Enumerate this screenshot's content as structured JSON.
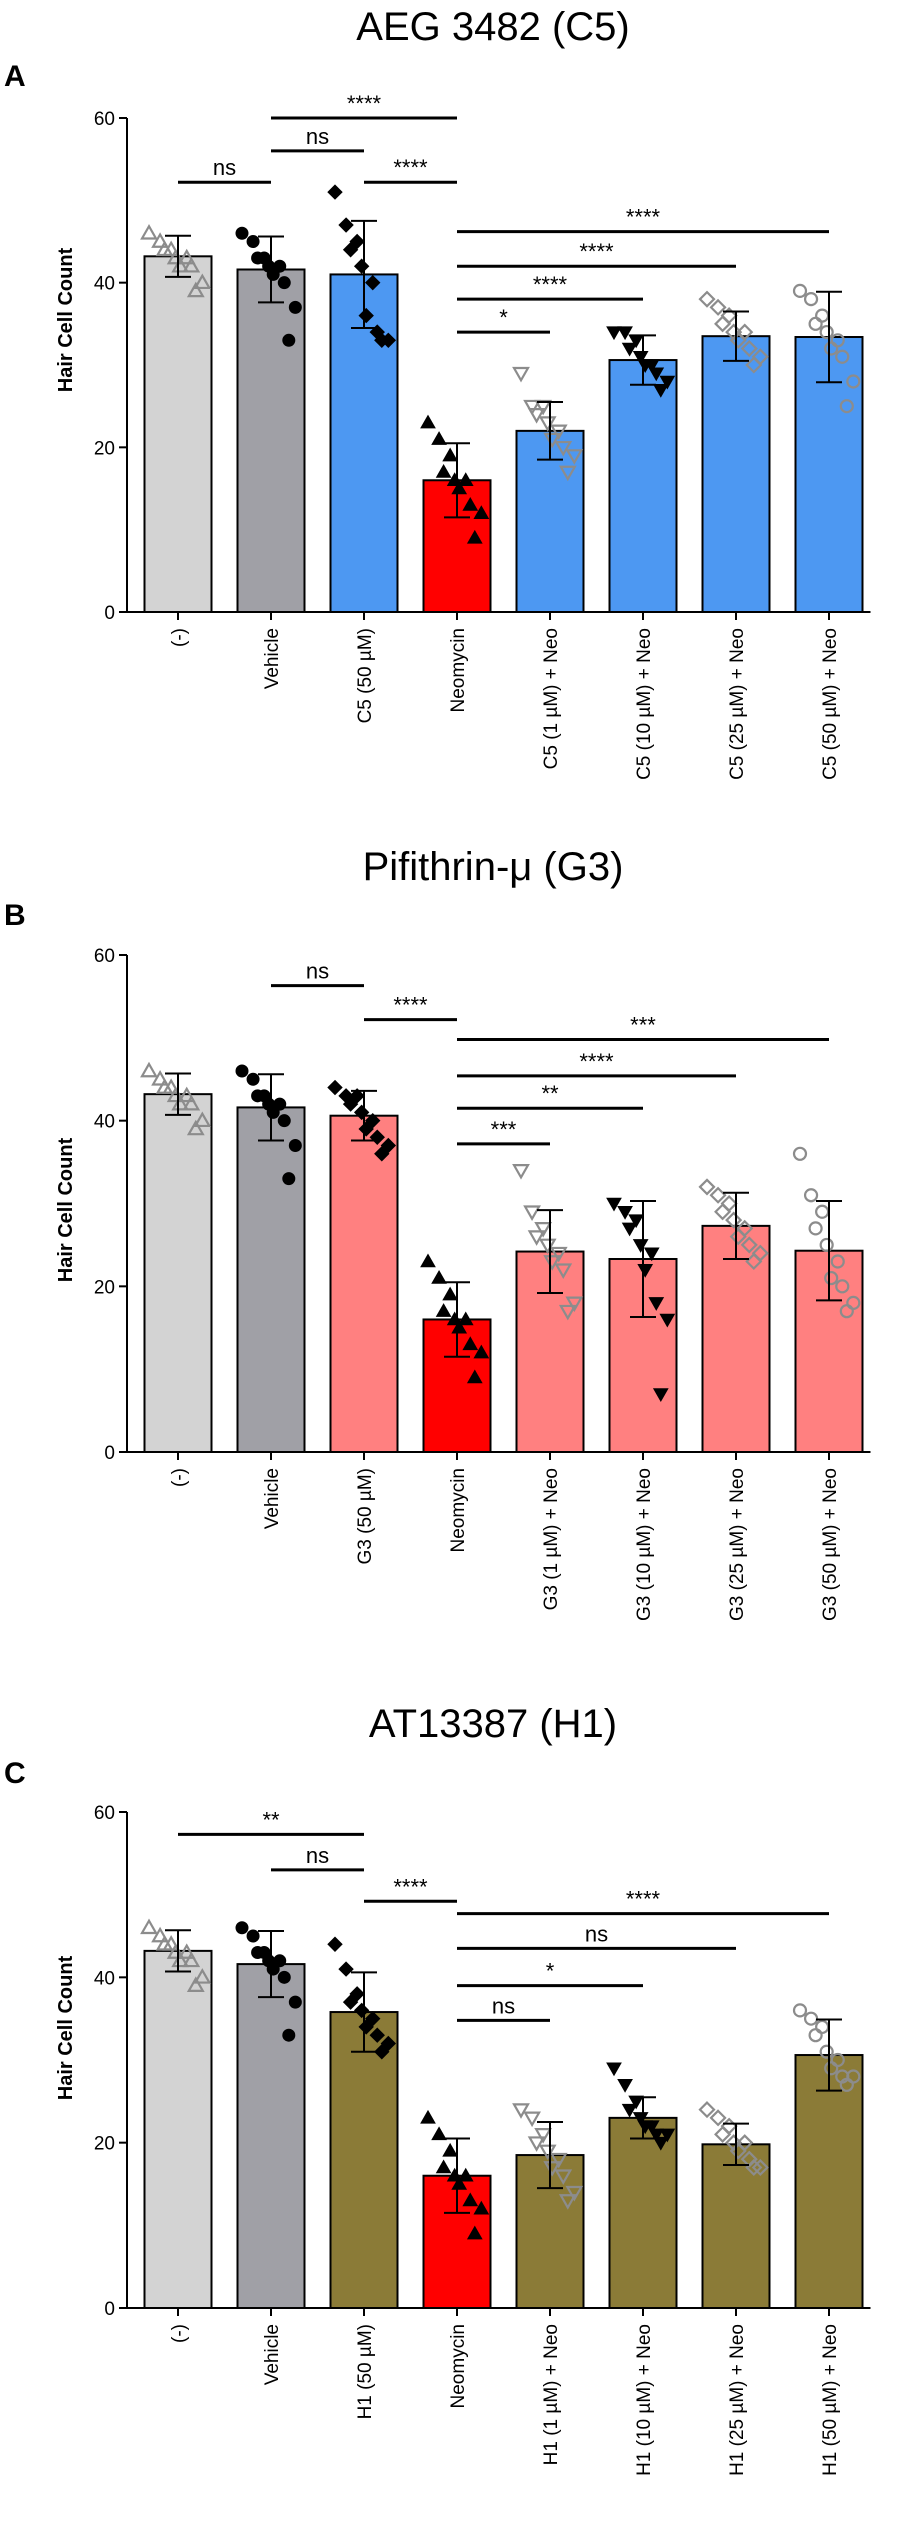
{
  "colors": {
    "none": "#d3d3d3",
    "vehicle": "#a0a0a6",
    "neomycin": "#ff0000",
    "c5": "#4d98f2",
    "g3": "#ff8080",
    "h1": "#8b7b37",
    "point_gray": "#8c8c8c",
    "point_black": "#000000"
  },
  "chart_data": [
    {
      "type": "bar",
      "panel": "A",
      "title": "AEG 3482 (C5)",
      "ylabel": "Hair Cell Count",
      "xlabel": "",
      "ylim": [
        0,
        60
      ],
      "yticks": [
        0,
        20,
        40,
        60
      ],
      "categories": [
        "(-)",
        "Vehicle",
        "C5 (50 µM)",
        "Neomycin",
        "C5 (1 µM) + Neo",
        "C5 (10 µM) + Neo",
        "C5 (25 µM) + Neo",
        "C5 (50 µM) + Neo"
      ],
      "values": [
        43.2,
        41.6,
        41.0,
        16.0,
        22.0,
        30.6,
        33.5,
        33.4
      ],
      "errors": [
        2.5,
        4.0,
        6.5,
        4.5,
        3.5,
        3.0,
        3.0,
        5.5
      ],
      "bar_colors": [
        "none",
        "vehicle",
        "c5",
        "neomycin",
        "c5",
        "c5",
        "c5",
        "c5"
      ],
      "marker_shapes": [
        "triangle-open",
        "circle",
        "diamond",
        "triangle",
        "triangle-down-open",
        "triangle-down",
        "diamond-open",
        "circle-open"
      ],
      "points": [
        [
          46,
          45,
          44,
          44,
          43,
          43,
          42,
          42,
          40,
          39
        ],
        [
          46,
          45,
          43,
          43,
          42,
          42,
          41,
          40,
          37,
          33
        ],
        [
          51,
          47,
          45,
          44,
          42,
          40,
          36,
          34,
          33,
          33
        ],
        [
          23,
          21,
          19,
          17,
          16,
          16,
          15,
          13,
          12,
          9
        ],
        [
          29,
          25,
          25,
          24,
          23,
          22,
          21,
          20,
          19,
          17
        ],
        [
          34,
          34,
          33,
          32,
          31,
          30,
          30,
          29,
          28,
          27
        ],
        [
          38,
          37,
          36,
          35,
          34,
          34,
          33,
          32,
          31,
          30
        ],
        [
          39,
          38,
          36,
          35,
          34,
          33,
          32,
          31,
          28,
          25
        ]
      ],
      "comparisons": [
        {
          "from": 0,
          "to": 1,
          "label": "ns",
          "y": 52.2
        },
        {
          "from": 1,
          "to": 3,
          "label": "****",
          "y": 60
        },
        {
          "from": 1,
          "to": 2,
          "label": "ns",
          "y": 56
        },
        {
          "from": 2,
          "to": 3,
          "label": "****",
          "y": 52.2
        },
        {
          "from": 3,
          "to": 7,
          "label": "****",
          "y": 46.2
        },
        {
          "from": 3,
          "to": 6,
          "label": "****",
          "y": 42
        },
        {
          "from": 3,
          "to": 5,
          "label": "****",
          "y": 38
        },
        {
          "from": 3,
          "to": 4,
          "label": "*",
          "y": 34
        }
      ]
    },
    {
      "type": "bar",
      "panel": "B",
      "title": "Pifithrin-μ (G3)",
      "ylabel": "Hair Cell Count",
      "xlabel": "",
      "ylim": [
        0,
        60
      ],
      "yticks": [
        0,
        20,
        40,
        60
      ],
      "categories": [
        "(-)",
        "Vehicle",
        "G3 (50 µM)",
        "Neomycin",
        "G3 (1 µM) + Neo",
        "G3 (10 µM) + Neo",
        "G3 (25 µM) + Neo",
        "G3 (50 µM) + Neo"
      ],
      "values": [
        43.2,
        41.6,
        40.6,
        16.0,
        24.2,
        23.3,
        27.3,
        24.3
      ],
      "errors": [
        2.5,
        4.0,
        3.0,
        4.5,
        5.0,
        7.0,
        4.0,
        6.0
      ],
      "bar_colors": [
        "none",
        "vehicle",
        "g3",
        "neomycin",
        "g3",
        "g3",
        "g3",
        "g3"
      ],
      "marker_shapes": [
        "triangle-open",
        "circle",
        "diamond",
        "triangle",
        "triangle-down-open",
        "triangle-down",
        "diamond-open",
        "circle-open"
      ],
      "points": [
        [
          46,
          45,
          44,
          44,
          43,
          43,
          42,
          42,
          40,
          39
        ],
        [
          46,
          45,
          43,
          43,
          42,
          42,
          41,
          40,
          37,
          33
        ],
        [
          44,
          43,
          43,
          42,
          41,
          40,
          39,
          38,
          37,
          36
        ],
        [
          23,
          21,
          19,
          17,
          16,
          16,
          15,
          13,
          12,
          9
        ],
        [
          34,
          29,
          27,
          26,
          25,
          24,
          23,
          22,
          18,
          17
        ],
        [
          30,
          29,
          28,
          27,
          25,
          24,
          22,
          18,
          16,
          7
        ],
        [
          32,
          31,
          30,
          29,
          28,
          27,
          26,
          25,
          24,
          23
        ],
        [
          36,
          31,
          29,
          27,
          25,
          23,
          21,
          20,
          18,
          17
        ]
      ],
      "comparisons": [
        {
          "from": 1,
          "to": 2,
          "label": "ns",
          "y": 56.3
        },
        {
          "from": 2,
          "to": 3,
          "label": "****",
          "y": 52.2
        },
        {
          "from": 3,
          "to": 7,
          "label": "***",
          "y": 49.8
        },
        {
          "from": 3,
          "to": 6,
          "label": "****",
          "y": 45.4
        },
        {
          "from": 3,
          "to": 5,
          "label": "**",
          "y": 41.5
        },
        {
          "from": 3,
          "to": 4,
          "label": "***",
          "y": 37.2
        }
      ]
    },
    {
      "type": "bar",
      "panel": "C",
      "title": "AT13387 (H1)",
      "ylabel": "Hair Cell Count",
      "xlabel": "",
      "ylim": [
        0,
        60
      ],
      "yticks": [
        0,
        20,
        40,
        60
      ],
      "categories": [
        "(-)",
        "Vehicle",
        "H1 (50 µM)",
        "Neomycin",
        "H1 (1 µM) + Neo",
        "H1 (10 µM) + Neo",
        "H1 (25 µM) + Neo",
        "H1 (50 µM) + Neo"
      ],
      "values": [
        43.2,
        41.6,
        35.8,
        16.0,
        18.5,
        23.0,
        19.8,
        30.6
      ],
      "errors": [
        2.5,
        4.0,
        4.8,
        4.5,
        4.0,
        2.5,
        2.5,
        4.3
      ],
      "bar_colors": [
        "none",
        "vehicle",
        "h1",
        "neomycin",
        "h1",
        "h1",
        "h1",
        "h1"
      ],
      "marker_shapes": [
        "triangle-open",
        "circle",
        "diamond",
        "triangle",
        "triangle-down-open",
        "triangle-down",
        "diamond-open",
        "circle-open"
      ],
      "points": [
        [
          46,
          45,
          44,
          44,
          43,
          43,
          42,
          42,
          40,
          39
        ],
        [
          46,
          45,
          43,
          43,
          42,
          42,
          41,
          40,
          37,
          33
        ],
        [
          44,
          41,
          38,
          37,
          36,
          35,
          34,
          33,
          32,
          31
        ],
        [
          23,
          21,
          19,
          17,
          16,
          16,
          15,
          13,
          12,
          9
        ],
        [
          24,
          23,
          21,
          20,
          19,
          18,
          17,
          16,
          14,
          13
        ],
        [
          29,
          27,
          25,
          24,
          23,
          22,
          22,
          21,
          21,
          20
        ],
        [
          24,
          23,
          22,
          21,
          20,
          20,
          19,
          18,
          17,
          17
        ],
        [
          36,
          35,
          34,
          33,
          31,
          30,
          29,
          28,
          28,
          27
        ]
      ],
      "comparisons": [
        {
          "from": 0,
          "to": 2,
          "label": "**",
          "y": 57.3
        },
        {
          "from": 1,
          "to": 2,
          "label": "ns",
          "y": 53
        },
        {
          "from": 2,
          "to": 3,
          "label": "****",
          "y": 49.2
        },
        {
          "from": 3,
          "to": 7,
          "label": "****",
          "y": 47.7
        },
        {
          "from": 3,
          "to": 6,
          "label": "ns",
          "y": 43.5
        },
        {
          "from": 3,
          "to": 5,
          "label": "*",
          "y": 39
        },
        {
          "from": 3,
          "to": 4,
          "label": "ns",
          "y": 34.8
        }
      ]
    }
  ]
}
